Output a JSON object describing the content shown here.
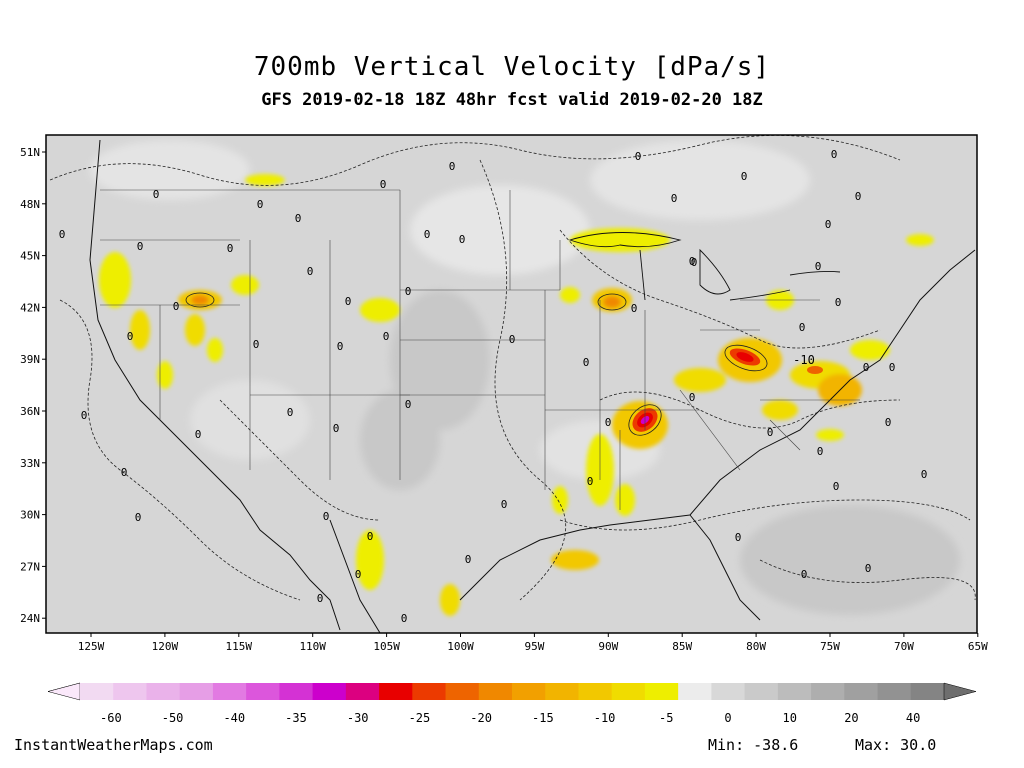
{
  "title": "700mb Vertical Velocity [dPa/s]",
  "subtitle": "GFS 2019-02-18 18Z 48hr fcst valid 2019-02-20 18Z",
  "map": {
    "background": "#d6d6d6",
    "lat_labels": [
      "51N",
      "48N",
      "45N",
      "42N",
      "39N",
      "36N",
      "33N",
      "30N",
      "27N",
      "24N"
    ],
    "lon_labels": [
      "125W",
      "120W",
      "115W",
      "110W",
      "105W",
      "100W",
      "95W",
      "90W",
      "85W",
      "80W",
      "75W",
      "70W",
      "65W"
    ],
    "contour_labels": [
      "0",
      "-10"
    ],
    "features": [
      {
        "name": "Tennessee Valley maximum",
        "min_value": -38.6
      },
      {
        "name": "Virginia maximum",
        "value_class": -25
      }
    ]
  },
  "colorbar": {
    "ticks": [
      "-60",
      "-50",
      "-40",
      "-35",
      "-30",
      "-25",
      "-20",
      "-15",
      "-10",
      "-5",
      "0",
      "10",
      "20",
      "40"
    ],
    "colors": [
      "#f2daf2",
      "#eec6ee",
      "#eab2ea",
      "#e69ee6",
      "#e27ae2",
      "#dc56dc",
      "#d432d4",
      "#cc00cc",
      "#dc0080",
      "#e80000",
      "#ec3a00",
      "#ee6400",
      "#f08800",
      "#f2a000",
      "#f2b400",
      "#f2c800",
      "#f0dc00",
      "#eeee00",
      "#ececec",
      "#d8d8d8",
      "#cacaca",
      "#bcbcbc",
      "#aeaeae",
      "#a0a0a0",
      "#929292",
      "#848484"
    ]
  },
  "footer": {
    "credit": "InstantWeatherMaps.com",
    "min_text": "Min: -38.6",
    "max_text": "Max: 30.0"
  }
}
